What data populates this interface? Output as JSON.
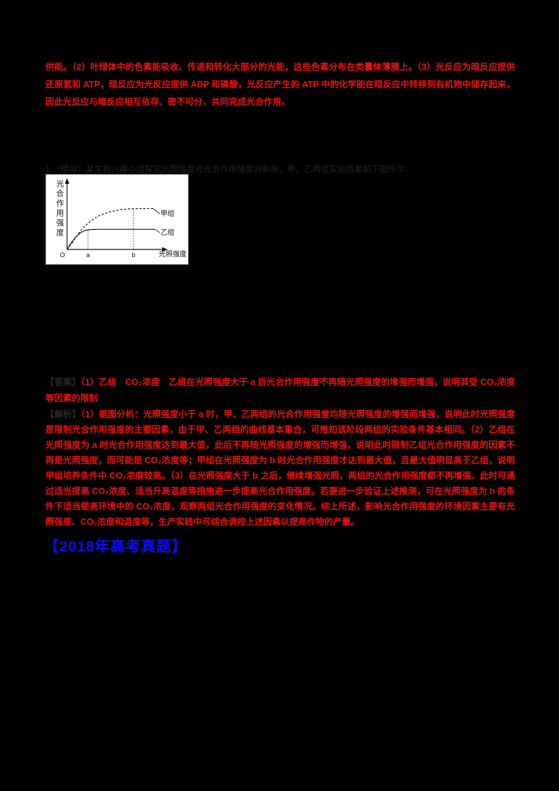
{
  "page": {
    "background": "#000000",
    "red_text_color": "#ee1111",
    "blue_heading_color": "#0d0df2",
    "dark_label_color": "#2a2a2a"
  },
  "top_paragraph": "供能。（2）叶绿体中的色素能吸收、传递和转化大部分的光能，这些色素分布在类囊体薄膜上。（3）光反应为暗反应提供还原氢和 ATP，暗反应为光反应提供 ADP 和磷酸，光反应产生的 ATP 中的化学能在暗反应中转移到有机物中储存起来，因此光反应与暗反应相互依存、密不可分，共同完成光合作用。",
  "question_stem": "1.（模拟）某生物兴趣小组探究光照强度对光合作用强度的影响，甲、乙两组实验结果如下图所示：",
  "chart_data": {
    "type": "line",
    "title": "",
    "xlabel": "光照强度",
    "ylabel": "光合作用强度",
    "x_ticks": [
      {
        "label": "O",
        "x": 0
      },
      {
        "label": "a",
        "x": 0.214
      },
      {
        "label": "b",
        "x": 0.679
      }
    ],
    "guides": [
      {
        "x": 0.214,
        "y": 0.32
      },
      {
        "x": 0.679,
        "y": 0.65
      }
    ],
    "series": [
      {
        "name": "甲组",
        "style": "dashed",
        "points": [
          [
            0,
            0
          ],
          [
            0.05,
            0.1
          ],
          [
            0.1,
            0.22
          ],
          [
            0.16,
            0.34
          ],
          [
            0.24,
            0.45
          ],
          [
            0.33,
            0.54
          ],
          [
            0.44,
            0.6
          ],
          [
            0.55,
            0.635
          ],
          [
            0.68,
            0.65
          ],
          [
            0.88,
            0.65
          ]
        ],
        "label_pos": [
          0.955,
          0.6
        ]
      },
      {
        "name": "乙组",
        "style": "solid",
        "points": [
          [
            0,
            0
          ],
          [
            0.04,
            0.1
          ],
          [
            0.09,
            0.2
          ],
          [
            0.14,
            0.27
          ],
          [
            0.19,
            0.305
          ],
          [
            0.25,
            0.318
          ],
          [
            0.32,
            0.32
          ],
          [
            0.9,
            0.32
          ]
        ],
        "label_pos": [
          0.955,
          0.3
        ]
      }
    ],
    "axis_ranges": {
      "x": [
        "O",
        "a",
        "b"
      ],
      "y": "相对值（未标数值）"
    },
    "grid": false,
    "legend_position": "curve-end-labels"
  },
  "answer": {
    "label": "【答案】",
    "text": "（1）乙组　CO₂浓度　乙组在光照强度大于 a 后光合作用强度不再随光照强度的增强而增强，说明其受 CO₂浓度等因素的限制"
  },
  "analysis": {
    "label": "【解析】",
    "text": "（1）据图分析：光照强度小于 a 时，甲、乙两组的光合作用强度均随光照强度的增强而增强，说明此时光照强度是限制光合作用强度的主要因素，由于甲、乙两组的曲线基本重合，可推知该阶段两组的实验条件基本相同。（2）乙组在光照强度为 a 时光合作用强度达到最大值，此后不再随光照强度的增强而增强，说明此时限制乙组光合作用强度的因素不再是光照强度，而可能是 CO₂浓度等；甲组在光照强度为 b 时光合作用强度才达到最大值，且最大值明显高于乙组，说明甲组培养条件中 CO₂浓度较高。（3）在光照强度大于 b 之后，继续增强光照，两组的光合作用强度都不再增强，此时可通过适当提高 CO₂浓度、适当升高温度等措施进一步提高光合作用强度。若要进一步验证上述推测，可在光照强度为 b 的条件下适当提高环境中的 CO₂浓度，观察两组光合作用强度的变化情况。综上所述，影响光合作用强度的环境因素主要有光照强度、CO₂浓度和温度等，生产实践中可综合调控上述因素以提高作物的产量。"
  },
  "next_section_heading": "【2018年高考真题】"
}
